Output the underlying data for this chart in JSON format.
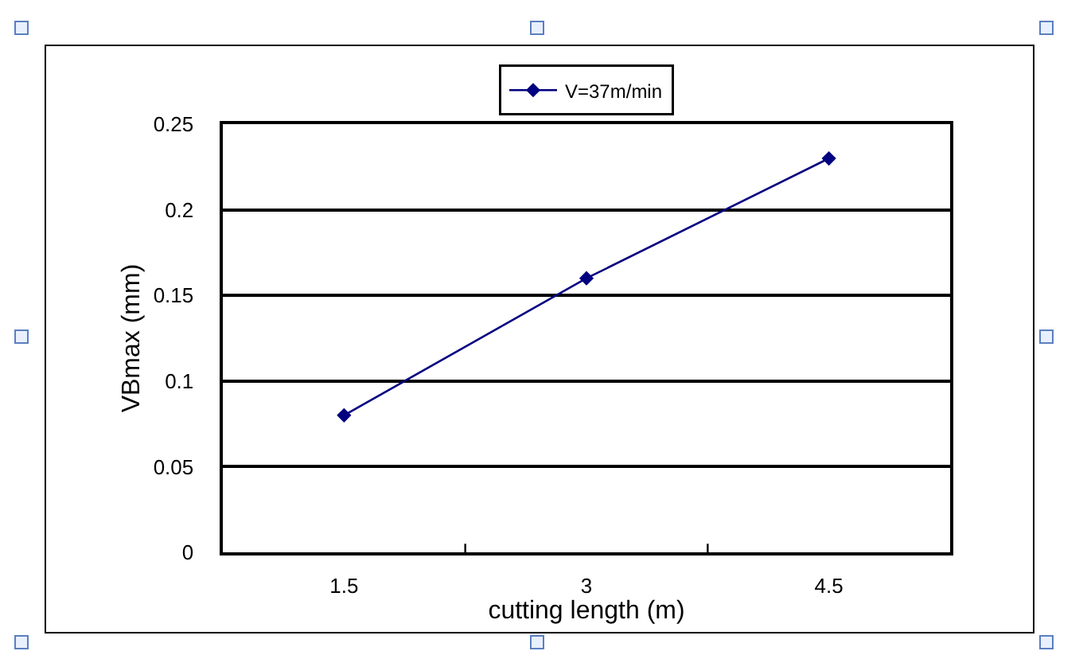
{
  "chart_data": {
    "type": "line",
    "xlabel": "cutting length (m)",
    "ylabel": "VBmax (mm)",
    "categories": [
      "1.5",
      "3",
      "4.5"
    ],
    "series": [
      {
        "name": "V=37m/min",
        "color": "#000080",
        "values": [
          0.08,
          0.16,
          0.23
        ]
      }
    ],
    "ylim": [
      0,
      0.25
    ],
    "yticks": [
      0,
      0.05,
      0.1,
      0.15,
      0.2,
      0.25
    ],
    "grid": "y",
    "legend": "top",
    "marker": "diamond",
    "line_style": "solid"
  }
}
